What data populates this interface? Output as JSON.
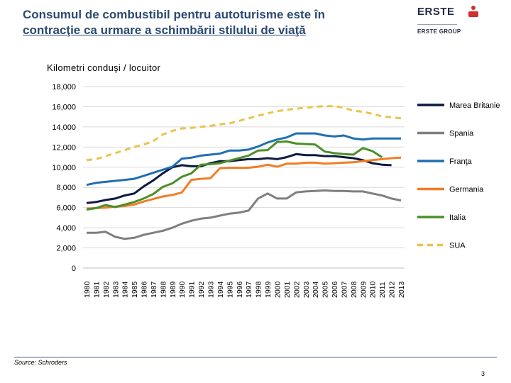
{
  "header": {
    "title_line1": "Consumul de combustibil pentru autoturisme este în",
    "title_line2": "contracţie ca urmare a schimbării stilului de viaţă",
    "logo_brand": "ERSTE",
    "logo_group": "ERSTE GROUP"
  },
  "chart_data": {
    "type": "line",
    "title": "Kilometri conduşi / locuitor",
    "xlabel": "",
    "ylabel": "",
    "ylim": [
      0,
      18000
    ],
    "yticks": [
      0,
      2000,
      4000,
      6000,
      8000,
      10000,
      12000,
      14000,
      16000,
      18000
    ],
    "ytick_labels": [
      "0",
      "2,000",
      "4,000",
      "6,000",
      "8,000",
      "10,000",
      "12,000",
      "14,000",
      "16,000",
      "18,000"
    ],
    "x": [
      "1980",
      "1981",
      "1982",
      "1983",
      "1984",
      "1985",
      "1986",
      "1987",
      "1988",
      "1989",
      "1990",
      "1991",
      "1992",
      "1993",
      "1994",
      "1995",
      "1996",
      "1997",
      "1998",
      "1999",
      "2000",
      "2001",
      "2002",
      "2003",
      "2004",
      "2005",
      "2006",
      "2007",
      "2008",
      "2009",
      "2010",
      "2011",
      "2012",
      "2013"
    ],
    "legend_position": "right",
    "series": [
      {
        "name": "Marea Britanie",
        "color": "#0d1b3e",
        "dash": false,
        "values": [
          6450,
          6550,
          6750,
          6900,
          7200,
          7400,
          8100,
          8700,
          9400,
          10000,
          10200,
          10100,
          10100,
          10400,
          10600,
          10600,
          10700,
          10800,
          10800,
          10900,
          10800,
          11000,
          11300,
          11200,
          11200,
          11100,
          11100,
          11000,
          10900,
          10700,
          10400,
          10250,
          10200,
          null
        ]
      },
      {
        "name": "Spania",
        "color": "#7f7f7f",
        "dash": false,
        "values": [
          3500,
          3500,
          3600,
          3100,
          2900,
          3000,
          3300,
          3500,
          3700,
          4000,
          4400,
          4700,
          4900,
          5000,
          5200,
          5400,
          5500,
          5700,
          6900,
          7400,
          6900,
          6900,
          7500,
          7600,
          7650,
          7700,
          7650,
          7650,
          7600,
          7600,
          7400,
          7200,
          6900,
          6700
        ]
      },
      {
        "name": "Franţa",
        "color": "#1f6fb4",
        "dash": false,
        "values": [
          8250,
          8450,
          8550,
          8650,
          8750,
          8850,
          9150,
          9450,
          9750,
          10050,
          10850,
          10950,
          11150,
          11250,
          11350,
          11650,
          11650,
          11750,
          12050,
          12450,
          12750,
          12950,
          13350,
          13350,
          13350,
          13150,
          13050,
          13150,
          12850,
          12750,
          12850,
          12850,
          12850,
          12850
        ]
      },
      {
        "name": "Germania",
        "color": "#f07e26",
        "dash": false,
        "values": [
          5900,
          5950,
          6000,
          6100,
          6150,
          6300,
          6600,
          6850,
          7100,
          7250,
          7500,
          8750,
          8850,
          8900,
          9900,
          9950,
          9950,
          9950,
          10050,
          10250,
          10050,
          10350,
          10350,
          10450,
          10450,
          10350,
          10400,
          10450,
          10500,
          10600,
          10700,
          10800,
          10900,
          10950
        ]
      },
      {
        "name": "Italia",
        "color": "#4b8f29",
        "dash": false,
        "values": [
          5800,
          5950,
          6250,
          6050,
          6300,
          6550,
          6900,
          7350,
          8050,
          8400,
          9050,
          9400,
          10250,
          10300,
          10400,
          10650,
          10900,
          11150,
          11650,
          11700,
          12500,
          12550,
          12350,
          12300,
          12250,
          11550,
          11400,
          11300,
          11250,
          11900,
          11600,
          11000,
          null,
          null
        ]
      },
      {
        "name": "SUA",
        "color": "#e8c44a",
        "dash": true,
        "values": [
          10700,
          10800,
          11100,
          11400,
          11700,
          12000,
          12250,
          12600,
          13250,
          13600,
          13850,
          13900,
          14000,
          14100,
          14250,
          14350,
          14600,
          14850,
          15100,
          15350,
          15550,
          15700,
          15800,
          15900,
          16000,
          16050,
          16050,
          15900,
          15600,
          15500,
          15300,
          15050,
          14950,
          14850
        ]
      }
    ]
  },
  "source": "Source: Schroders",
  "page_number": "3"
}
